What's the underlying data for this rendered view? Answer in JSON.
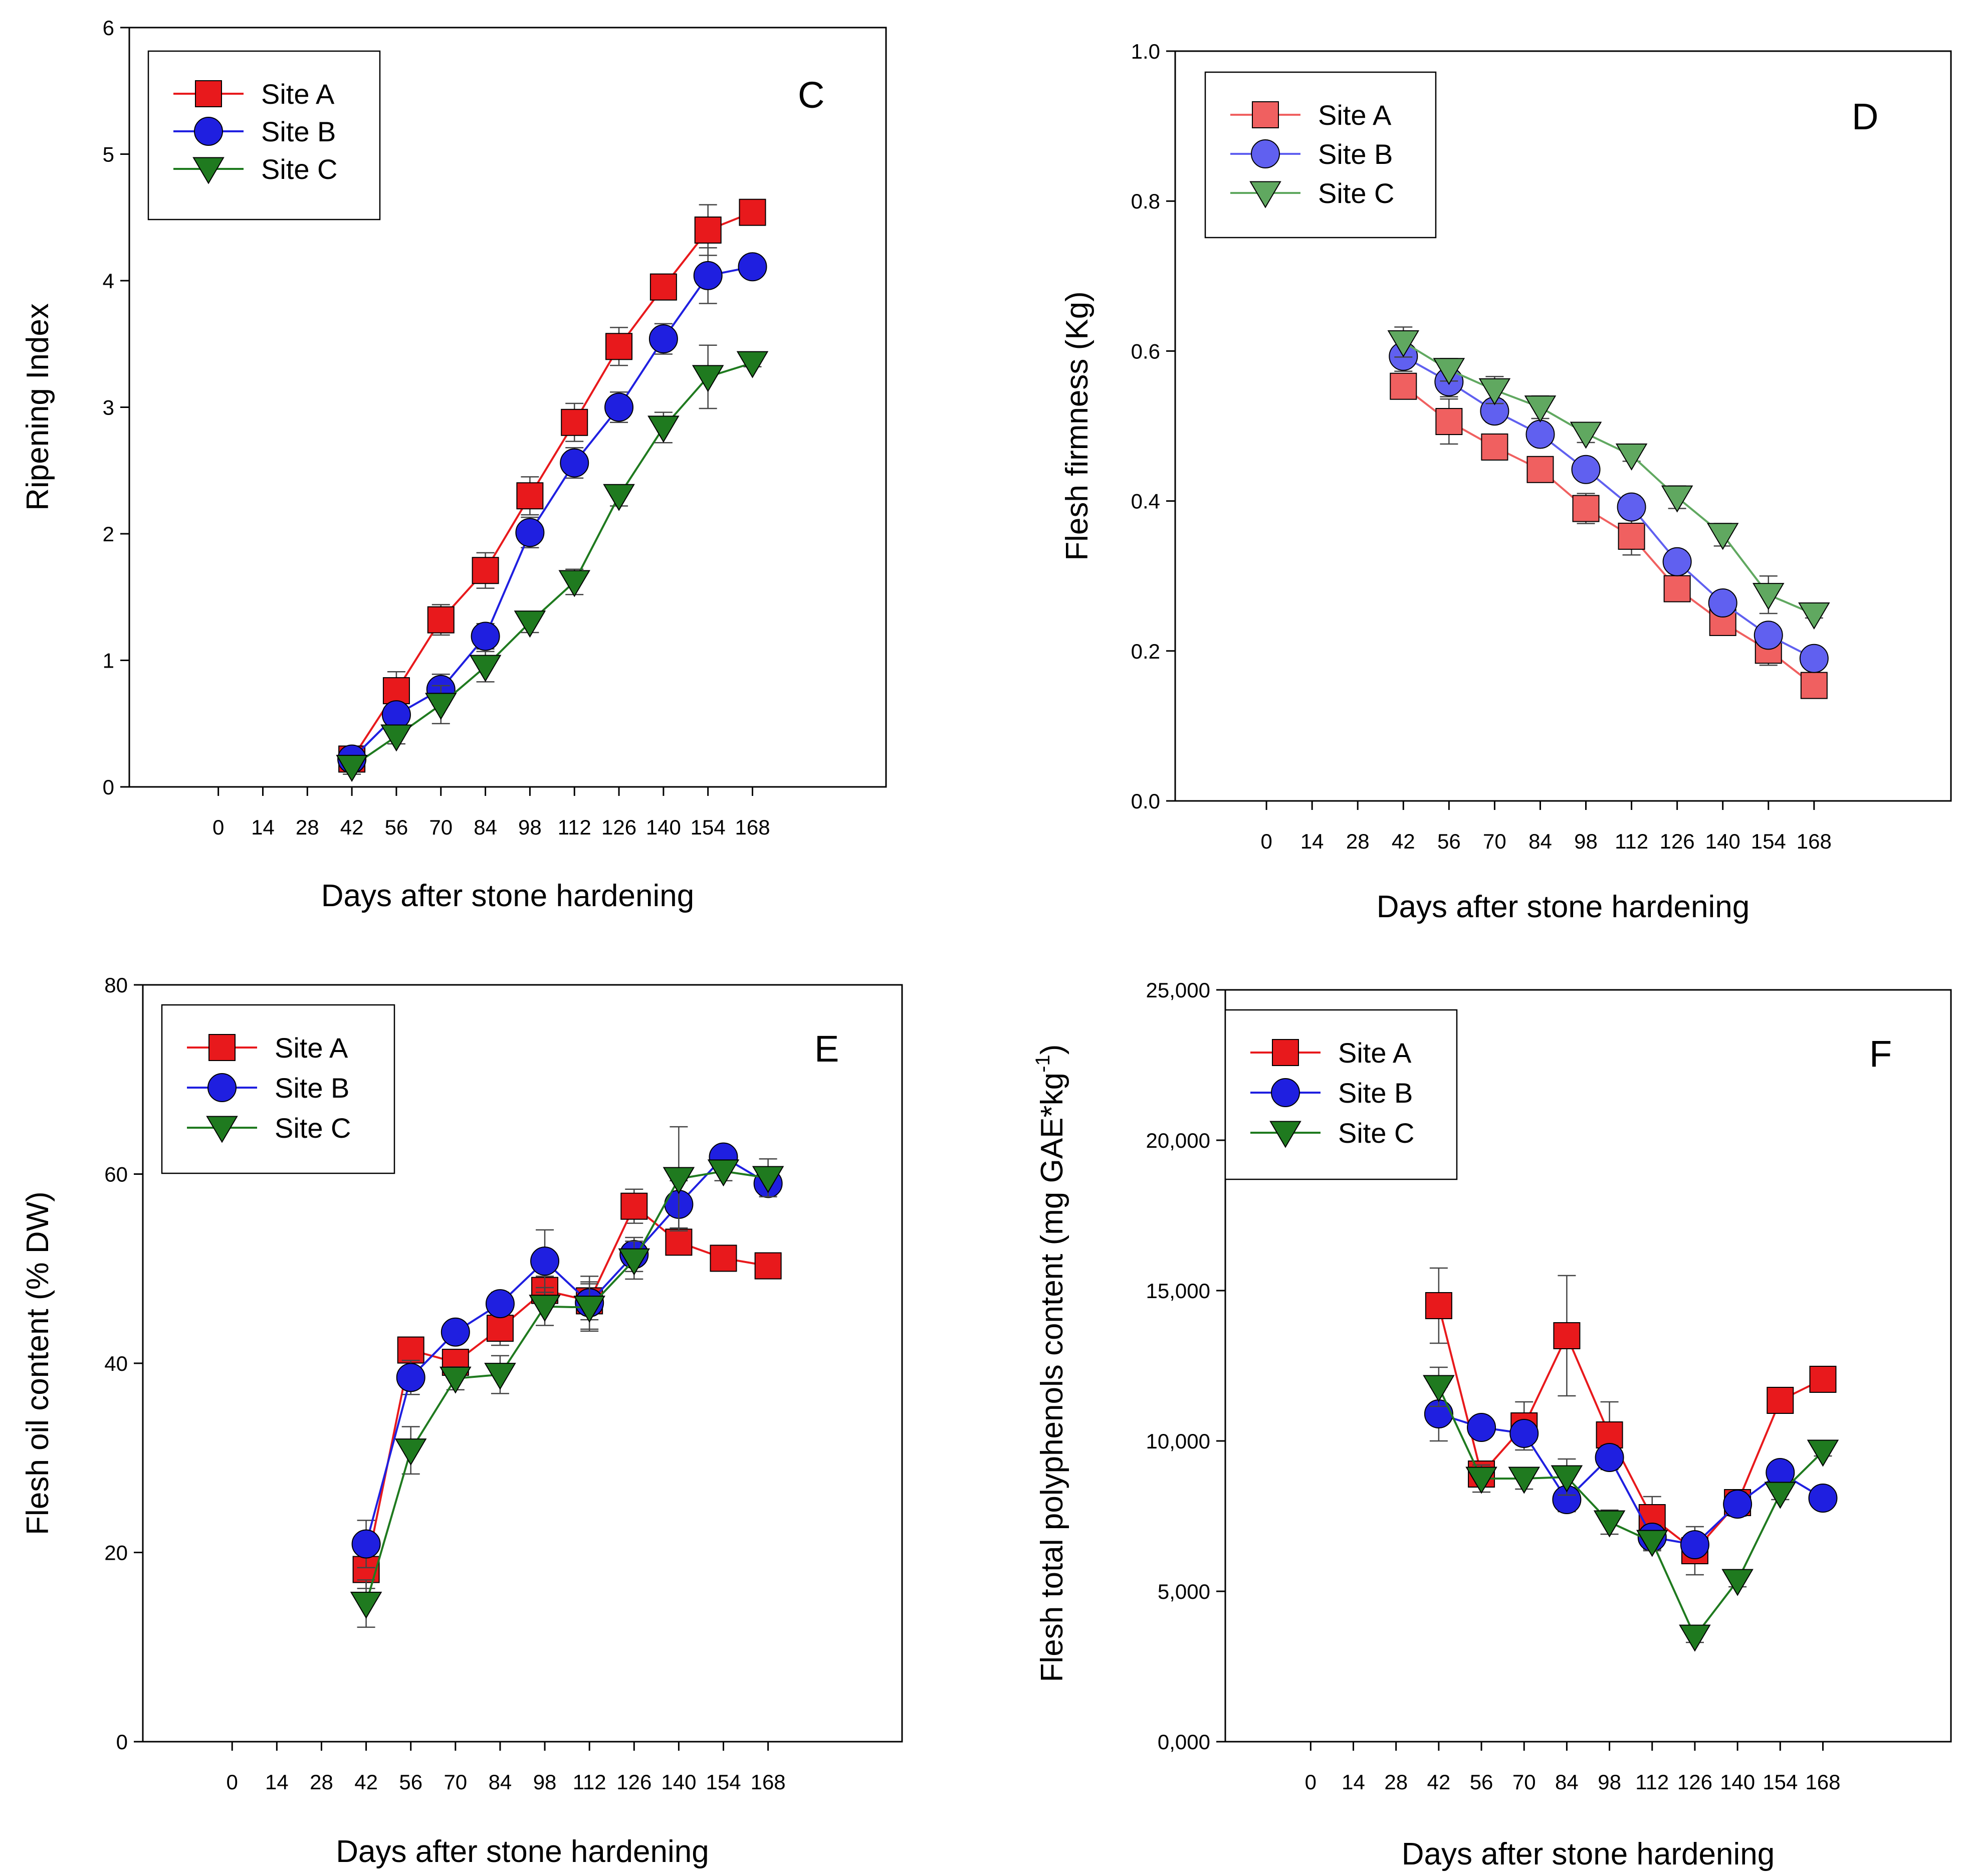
{
  "chart_data": [
    {
      "id": "C",
      "type": "line",
      "panel_letter": "C",
      "xlabel": "Days after stone hardening",
      "ylabel": "Ripening Index",
      "x_tick_labels": [
        "0",
        "14",
        "28",
        "42",
        "56",
        "70",
        "84",
        "98",
        "112",
        "126",
        "140",
        "154",
        "168"
      ],
      "y_tick_labels": [
        "0",
        "1",
        "2",
        "3",
        "4",
        "5",
        "6"
      ],
      "y_ticks": [
        0,
        1,
        2,
        3,
        4,
        5,
        6
      ],
      "ylim": [
        0,
        6
      ],
      "legend_position": "top-left",
      "x": [
        42,
        56,
        70,
        84,
        98,
        112,
        126,
        140,
        154,
        168
      ],
      "series": [
        {
          "name": "Site A",
          "color": "#e8191c",
          "marker": "square",
          "values": [
            0.22,
            0.76,
            1.32,
            1.71,
            2.3,
            2.88,
            3.48,
            3.95,
            4.4,
            4.54
          ],
          "errors": [
            0.06,
            0.15,
            0.12,
            0.14,
            0.15,
            0.15,
            0.15,
            0.08,
            0.2,
            0.08
          ]
        },
        {
          "name": "Site B",
          "color": "#1f1fe0",
          "marker": "circle",
          "values": [
            0.22,
            0.57,
            0.77,
            1.19,
            2.01,
            2.56,
            3.0,
            3.54,
            4.04,
            4.11
          ],
          "errors": [
            0.06,
            0.07,
            0.12,
            0.1,
            0.12,
            0.12,
            0.12,
            0.12,
            0.22,
            0.03
          ]
        },
        {
          "name": "Site C",
          "color": "#1f7a1f",
          "marker": "triangle-down",
          "values": [
            0.16,
            0.4,
            0.65,
            0.95,
            1.3,
            1.62,
            2.3,
            2.84,
            3.24,
            3.35
          ],
          "errors": [
            0.06,
            0.06,
            0.15,
            0.12,
            0.08,
            0.1,
            0.08,
            0.12,
            0.25,
            0.03
          ]
        }
      ]
    },
    {
      "id": "D",
      "type": "line",
      "panel_letter": "D",
      "xlabel": "Days after stone hardening",
      "ylabel": "Flesh firmness (Kg)",
      "x_tick_labels": [
        "0",
        "14",
        "28",
        "42",
        "56",
        "70",
        "84",
        "98",
        "112",
        "126",
        "140",
        "154",
        "168"
      ],
      "y_tick_labels": [
        "0.0",
        "0.2",
        "0.4",
        "0.6",
        "0.8",
        "1.0"
      ],
      "y_ticks": [
        0,
        0.2,
        0.4,
        0.6,
        0.8,
        1.0
      ],
      "ylim": [
        0,
        1.0
      ],
      "legend_position": "top-left",
      "x": [
        42,
        56,
        70,
        84,
        98,
        112,
        126,
        140,
        154,
        168
      ],
      "series": [
        {
          "name": "Site A",
          "color": "#f06060",
          "marker": "square",
          "values": [
            0.553,
            0.506,
            0.472,
            0.442,
            0.39,
            0.353,
            0.283,
            0.238,
            0.201,
            0.154
          ],
          "errors": [
            0.015,
            0.03,
            0.015,
            0.015,
            0.02,
            0.025,
            0.015,
            0.01,
            0.02,
            0.008
          ]
        },
        {
          "name": "Site B",
          "color": "#6060f0",
          "marker": "circle",
          "values": [
            0.593,
            0.559,
            0.52,
            0.489,
            0.442,
            0.392,
            0.319,
            0.264,
            0.221,
            0.19
          ],
          "errors": [
            0.02,
            0.02,
            0.015,
            0.012,
            0.012,
            0.015,
            0.015,
            0.008,
            0.012,
            0.005
          ]
        },
        {
          "name": "Site C",
          "color": "#60a860",
          "marker": "triangle-down",
          "values": [
            0.612,
            0.575,
            0.548,
            0.525,
            0.49,
            0.461,
            0.405,
            0.355,
            0.275,
            0.249
          ],
          "errors": [
            0.02,
            0.015,
            0.018,
            0.015,
            0.012,
            0.008,
            0.015,
            0.015,
            0.025,
            0.005
          ]
        }
      ]
    },
    {
      "id": "E",
      "type": "line",
      "panel_letter": "E",
      "xlabel": "Days after stone hardening",
      "ylabel": "Flesh oil content (% DW)",
      "x_tick_labels": [
        "0",
        "14",
        "28",
        "42",
        "56",
        "70",
        "84",
        "98",
        "112",
        "126",
        "140",
        "154",
        "168"
      ],
      "y_tick_labels": [
        "0",
        "20",
        "40",
        "60",
        "80"
      ],
      "y_ticks": [
        0,
        20,
        40,
        60,
        80
      ],
      "ylim": [
        0,
        80
      ],
      "legend_position": "top-left",
      "x": [
        42,
        56,
        70,
        84,
        98,
        112,
        126,
        140,
        154,
        168
      ],
      "series": [
        {
          "name": "Site A",
          "color": "#e8191c",
          "marker": "square",
          "values": [
            18.2,
            41.4,
            40.1,
            43.7,
            47.7,
            46.6,
            56.6,
            52.8,
            51.1,
            50.3
          ],
          "errors": [
            2.0,
            0.8,
            1.2,
            1.8,
            1.5,
            2.0,
            1.8,
            0.5,
            0.5,
            0.8
          ]
        },
        {
          "name": "Site B",
          "color": "#1f1fe0",
          "marker": "circle",
          "values": [
            20.9,
            38.5,
            43.3,
            46.3,
            50.8,
            46.4,
            51.5,
            56.8,
            61.8,
            59.0
          ],
          "errors": [
            2.5,
            1.8,
            0.8,
            1.2,
            3.3,
            2.8,
            1.8,
            2.5,
            0.8,
            1.2
          ]
        },
        {
          "name": "Site C",
          "color": "#1f7a1f",
          "marker": "triangle-down",
          "values": [
            14.6,
            30.8,
            38.4,
            38.8,
            46.0,
            45.9,
            50.9,
            59.5,
            60.3,
            59.6
          ],
          "errors": [
            2.5,
            2.5,
            1.2,
            2.0,
            2.0,
            2.5,
            2.0,
            5.5,
            1.0,
            2.0
          ]
        }
      ]
    },
    {
      "id": "F",
      "type": "line",
      "panel_letter": "F",
      "xlabel": "Days after stone hardening",
      "ylabel": "Flesh total polyphenols content (mg GAE*kg",
      "ylabel_superscript": "-1",
      "ylabel_close": ")",
      "x_tick_labels": [
        "0",
        "14",
        "28",
        "42",
        "56",
        "70",
        "84",
        "98",
        "112",
        "126",
        "140",
        "154",
        "168"
      ],
      "y_tick_labels": [
        "0,000",
        "5,000",
        "10,000",
        "15,000",
        "20,000",
        "25,000"
      ],
      "y_ticks": [
        0,
        5000,
        10000,
        15000,
        20000,
        25000
      ],
      "ylim": [
        0,
        25000
      ],
      "legend_position": "top-left",
      "x": [
        42,
        56,
        70,
        84,
        98,
        112,
        126,
        140,
        154,
        168
      ],
      "series": [
        {
          "name": "Site A",
          "color": "#e8191c",
          "marker": "square",
          "values": [
            14500,
            8900,
            10500,
            13500,
            10200,
            7450,
            6350,
            7950,
            11350,
            12050
          ],
          "errors": [
            1250,
            350,
            800,
            2000,
            1100,
            700,
            800,
            400,
            150,
            350
          ]
        },
        {
          "name": "Site B",
          "color": "#1f1fe0",
          "marker": "circle",
          "values": [
            10900,
            10450,
            10250,
            8050,
            9450,
            6800,
            6550,
            7900,
            8950,
            8100
          ],
          "errors": [
            900,
            200,
            300,
            400,
            400,
            400,
            300,
            400,
            200,
            200
          ]
        },
        {
          "name": "Site C",
          "color": "#1f7a1f",
          "marker": "triangle-down",
          "values": [
            11800,
            8750,
            8750,
            8800,
            7300,
            6650,
            3500,
            5350,
            8250,
            9650
          ],
          "errors": [
            650,
            450,
            350,
            600,
            400,
            300,
            200,
            200,
            200,
            150
          ]
        }
      ]
    }
  ]
}
